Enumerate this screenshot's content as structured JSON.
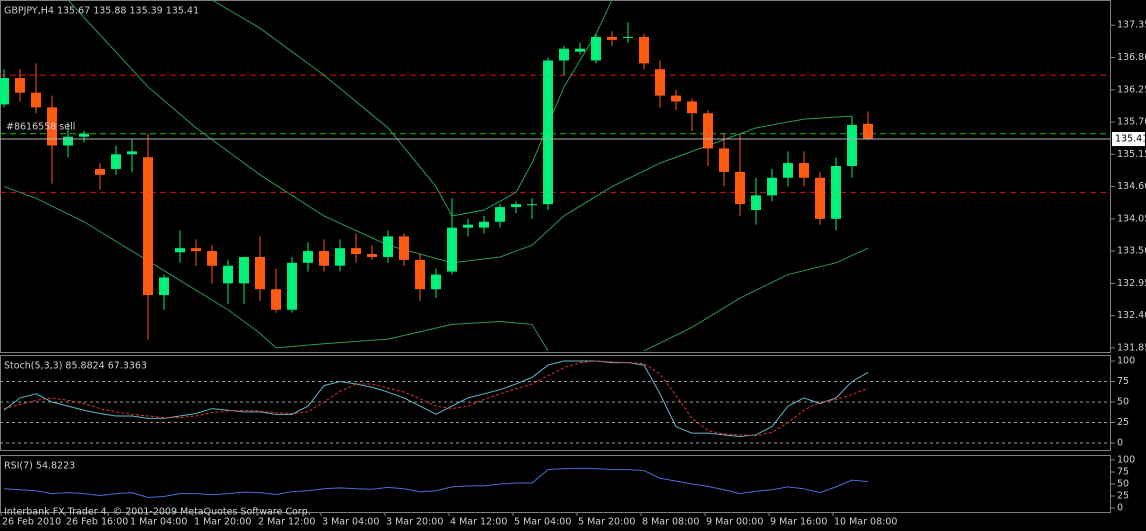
{
  "chart_data": [
    {
      "type": "candlestick",
      "title": "GBPJPY,H4  135.67 135.88 135.39 135.41",
      "categories": [
        "26 Feb 2010",
        null,
        null,
        null,
        "26 Feb 16:00",
        null,
        null,
        null,
        "1 Mar 04:00",
        null,
        null,
        null,
        "1 Mar 20:00",
        null,
        null,
        null,
        "2 Mar 12:00",
        null,
        null,
        null,
        "3 Mar 04:00",
        null,
        null,
        null,
        "3 Mar 20:00",
        null,
        null,
        null,
        "4 Mar 12:00",
        null,
        null,
        null,
        "5 Mar 04:00",
        null,
        null,
        null,
        "5 Mar 20:00",
        null,
        null,
        null,
        "8 Mar 08:00",
        null,
        null,
        null,
        "9 Mar 00:00",
        null,
        null,
        null,
        "9 Mar 16:00",
        null,
        null,
        null,
        "10 Mar 08:00",
        null,
        null
      ],
      "open": [
        136.0,
        136.45,
        136.2,
        135.95,
        135.3,
        135.45,
        134.9,
        134.9,
        135.15,
        135.1,
        132.75,
        133.48,
        133.55,
        133.5,
        132.95,
        132.95,
        133.4,
        132.85,
        132.5,
        133.3,
        133.5,
        133.25,
        133.55,
        133.45,
        133.4,
        133.75,
        133.35,
        132.85,
        133.15,
        133.9,
        133.9,
        134.0,
        134.25,
        134.3,
        134.3,
        136.75,
        136.9,
        136.75,
        137.15,
        137.15,
        137.15,
        136.6,
        136.15,
        136.05,
        135.85,
        135.25,
        134.85,
        134.2,
        134.45,
        134.75,
        135.0,
        134.75,
        134.05,
        134.95,
        135.67
      ],
      "high": [
        136.6,
        136.6,
        136.7,
        136.15,
        135.7,
        135.55,
        135.0,
        135.3,
        135.4,
        135.5,
        133.1,
        133.85,
        133.7,
        133.6,
        133.35,
        133.4,
        133.75,
        133.2,
        133.4,
        133.65,
        133.7,
        133.7,
        133.8,
        133.6,
        133.85,
        133.8,
        133.45,
        133.2,
        134.4,
        134.05,
        134.1,
        134.3,
        134.35,
        134.4,
        136.8,
        137.0,
        137.05,
        137.2,
        137.25,
        137.4,
        137.2,
        136.75,
        136.25,
        136.1,
        135.9,
        135.5,
        135.5,
        134.75,
        134.9,
        135.2,
        135.2,
        134.85,
        135.1,
        135.8,
        135.88
      ],
      "low": [
        135.95,
        136.05,
        135.85,
        134.65,
        135.1,
        135.35,
        134.55,
        134.8,
        134.85,
        131.99,
        132.5,
        133.3,
        133.25,
        132.95,
        132.6,
        132.6,
        132.65,
        132.45,
        132.45,
        133.15,
        133.15,
        133.15,
        133.3,
        133.35,
        133.3,
        133.25,
        132.65,
        132.7,
        133.1,
        133.75,
        133.8,
        133.9,
        134.15,
        134.05,
        134.2,
        136.5,
        136.85,
        136.7,
        137.0,
        137.05,
        136.6,
        135.95,
        135.9,
        135.55,
        134.95,
        134.6,
        134.1,
        133.95,
        134.35,
        134.6,
        134.6,
        133.95,
        133.85,
        134.75,
        135.39
      ],
      "close": [
        136.45,
        136.2,
        135.95,
        135.3,
        135.45,
        135.5,
        134.8,
        135.15,
        135.2,
        132.75,
        133.05,
        133.55,
        133.5,
        133.25,
        133.25,
        133.4,
        132.85,
        132.5,
        133.3,
        133.5,
        133.25,
        133.55,
        133.45,
        133.4,
        133.75,
        133.35,
        132.85,
        133.1,
        133.9,
        133.95,
        134.0,
        134.25,
        134.3,
        134.3,
        136.75,
        136.95,
        136.95,
        137.15,
        137.1,
        137.15,
        136.7,
        136.15,
        136.05,
        135.85,
        135.25,
        134.85,
        134.3,
        134.45,
        134.75,
        135.0,
        134.75,
        134.05,
        134.95,
        135.65,
        135.41
      ],
      "up_color": "#00f07a",
      "down_color": "#ff5a14",
      "series": [
        {
          "color": "#2a9a52",
          "x": [
            13,
            16,
            20,
            24,
            27,
            28,
            30,
            32,
            33,
            35,
            37,
            38
          ],
          "values": [
            137.78,
            137.3,
            136.5,
            135.6,
            134.6,
            134.1,
            134.2,
            134.5,
            135.0,
            136.3,
            137.2,
            137.78
          ]
        },
        {
          "color": "#2a9a52",
          "x": [
            4,
            9,
            12,
            16,
            20,
            24,
            28,
            31,
            33,
            35,
            38,
            41,
            44,
            47,
            50,
            53
          ],
          "values": [
            137.78,
            136.3,
            135.6,
            134.8,
            134.1,
            133.6,
            133.3,
            133.4,
            133.6,
            134.1,
            134.6,
            135.0,
            135.3,
            135.6,
            135.75,
            135.8
          ]
        },
        {
          "color": "#2a9a52",
          "x": [
            0,
            2,
            5,
            8,
            11,
            14,
            16,
            17,
            20,
            24,
            28,
            31,
            33,
            34,
            35,
            40,
            43,
            46,
            49,
            52,
            54
          ],
          "values": [
            134.6,
            134.4,
            134.0,
            133.5,
            133.0,
            132.5,
            132.1,
            131.85,
            131.92,
            132.0,
            132.25,
            132.3,
            132.25,
            131.8,
            null,
            131.8,
            132.2,
            132.7,
            133.1,
            133.3,
            133.55
          ]
        }
      ],
      "hlines": [
        {
          "value": 136.5,
          "color": "#e01010",
          "dash": true
        },
        {
          "value": 135.5,
          "color": "#10c010",
          "dash": true,
          "label": "#8616558 sell"
        },
        {
          "value": 134.5,
          "color": "#e01010",
          "dash": true
        }
      ],
      "ylim": [
        131.78,
        137.78
      ],
      "yticks": [
        131.85,
        {
          "value": 132.4,
          "label": "132.40"
        },
        132.95,
        {
          "value": 133.5,
          "label": "133.50"
        },
        134.05,
        {
          "value": 134.6,
          "label": "134.60"
        },
        135.15,
        {
          "value": 135.7,
          "label": "135.70"
        },
        136.25,
        {
          "value": 136.8,
          "label": "136.80"
        },
        137.35
      ]
    },
    {
      "type": "line",
      "title": "Stoch(5,3,3) 85.8824 67.3363",
      "series": [
        {
          "color": "#5fb7c7",
          "values": [
            40,
            55,
            60,
            50,
            45,
            40,
            36,
            33,
            33,
            30,
            30,
            33,
            36,
            42,
            40,
            38,
            38,
            35,
            35,
            45,
            70,
            75,
            72,
            68,
            62,
            55,
            45,
            35,
            45,
            55,
            60,
            65,
            72,
            80,
            95,
            100,
            100,
            100,
            98,
            98,
            95,
            60,
            20,
            12,
            12,
            10,
            8,
            10,
            20,
            45,
            55,
            48,
            55,
            75,
            86
          ]
        },
        {
          "color": "#e03030",
          "dash": true,
          "values": [
            42,
            47,
            52,
            55,
            52,
            48,
            42,
            38,
            35,
            33,
            31,
            31,
            33,
            37,
            39,
            40,
            39,
            37,
            36,
            38,
            50,
            63,
            72,
            72,
            67,
            62,
            54,
            45,
            42,
            45,
            53,
            60,
            66,
            72,
            82,
            92,
            98,
            100,
            99,
            98,
            97,
            84,
            58,
            30,
            15,
            11,
            10,
            9,
            13,
            25,
            40,
            50,
            53,
            59,
            67
          ]
        }
      ],
      "ylim": [
        -8.5,
        107.3
      ],
      "yticks": [
        0,
        25,
        50,
        75,
        100
      ],
      "grid": true
    },
    {
      "type": "line",
      "title": "RSI(7) 54.8223",
      "series": [
        {
          "color": "#4a6fd8",
          "values": [
            40,
            38,
            36,
            30,
            32,
            30,
            26,
            30,
            32,
            22,
            24,
            30,
            30,
            28,
            30,
            33,
            32,
            28,
            34,
            36,
            40,
            42,
            40,
            39,
            43,
            40,
            34,
            36,
            44,
            46,
            46,
            50,
            52,
            52,
            80,
            82,
            82,
            82,
            80,
            80,
            78,
            62,
            56,
            50,
            45,
            38,
            30,
            35,
            38,
            44,
            40,
            32,
            44,
            58,
            55
          ]
        }
      ],
      "ylim": [
        -8.3,
        110.4
      ],
      "yticks": [
        0,
        25,
        50,
        75,
        100
      ],
      "grid": false
    }
  ],
  "footer": "Interbank FX Trader 4, © 2001-2009 MetaQuotes Software Corp."
}
